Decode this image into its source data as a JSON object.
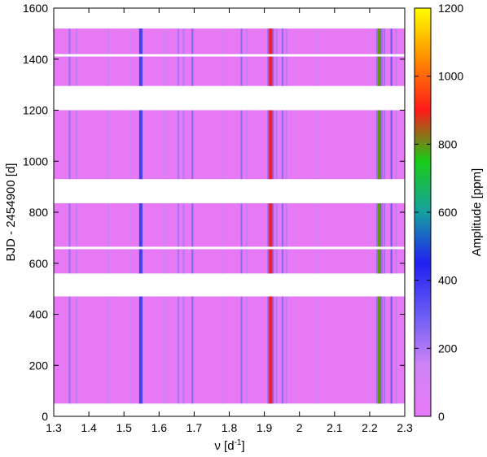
{
  "chart_data": {
    "type": "heatmap",
    "xlabel": "ν [d",
    "xlabel_sup": "-1",
    "xlabel_end": "]",
    "ylabel": "BJD - 2454900 [d]",
    "colorbar_label": "Amplitude [ppm]",
    "xlim": [
      1.3,
      2.3
    ],
    "ylim": [
      0,
      1600
    ],
    "x_ticks": [
      "1.3",
      "1.4",
      "1.5",
      "1.6",
      "1.7",
      "1.8",
      "1.9",
      "2",
      "2.1",
      "2.2",
      "2.3"
    ],
    "y_ticks": [
      "0",
      "200",
      "400",
      "600",
      "800",
      "1000",
      "1200",
      "1400",
      "1600"
    ],
    "colorbar_range": [
      0,
      1200
    ],
    "colorbar_ticks": [
      "0",
      "200",
      "400",
      "600",
      "800",
      "1000",
      "1200"
    ],
    "colormap": [
      "#e879f5",
      "#cf84f5",
      "#6a5cf5",
      "#2020f0",
      "#16a0a0",
      "#18cc18",
      "#ff1a1a",
      "#ff8c00",
      "#ffff00"
    ],
    "data_segments": [
      [
        50,
        470
      ],
      [
        560,
        835
      ],
      [
        930,
        1200
      ],
      [
        1295,
        1520
      ]
    ],
    "white_gap_lines": [
      660,
      1415
    ],
    "dominant_frequencies": [
      {
        "nu": 1.548,
        "amplitude": 380
      },
      {
        "nu": 1.918,
        "amplitude": 900
      },
      {
        "nu": 2.228,
        "amplitude": 800
      }
    ],
    "secondary_frequencies": [
      {
        "nu": 1.345,
        "amplitude": 230
      },
      {
        "nu": 1.365,
        "amplitude": 170
      },
      {
        "nu": 1.455,
        "amplitude": 160
      },
      {
        "nu": 1.52,
        "amplitude": 140
      },
      {
        "nu": 1.615,
        "amplitude": 150
      },
      {
        "nu": 1.655,
        "amplitude": 210
      },
      {
        "nu": 1.67,
        "amplitude": 190
      },
      {
        "nu": 1.695,
        "amplitude": 260
      },
      {
        "nu": 1.78,
        "amplitude": 140
      },
      {
        "nu": 1.835,
        "amplitude": 240
      },
      {
        "nu": 1.85,
        "amplitude": 170
      },
      {
        "nu": 1.935,
        "amplitude": 190
      },
      {
        "nu": 1.952,
        "amplitude": 250
      },
      {
        "nu": 1.963,
        "amplitude": 180
      },
      {
        "nu": 2.05,
        "amplitude": 120
      },
      {
        "nu": 2.242,
        "amplitude": 220
      },
      {
        "nu": 2.262,
        "amplitude": 300
      },
      {
        "nu": 2.275,
        "amplitude": 180
      }
    ]
  }
}
